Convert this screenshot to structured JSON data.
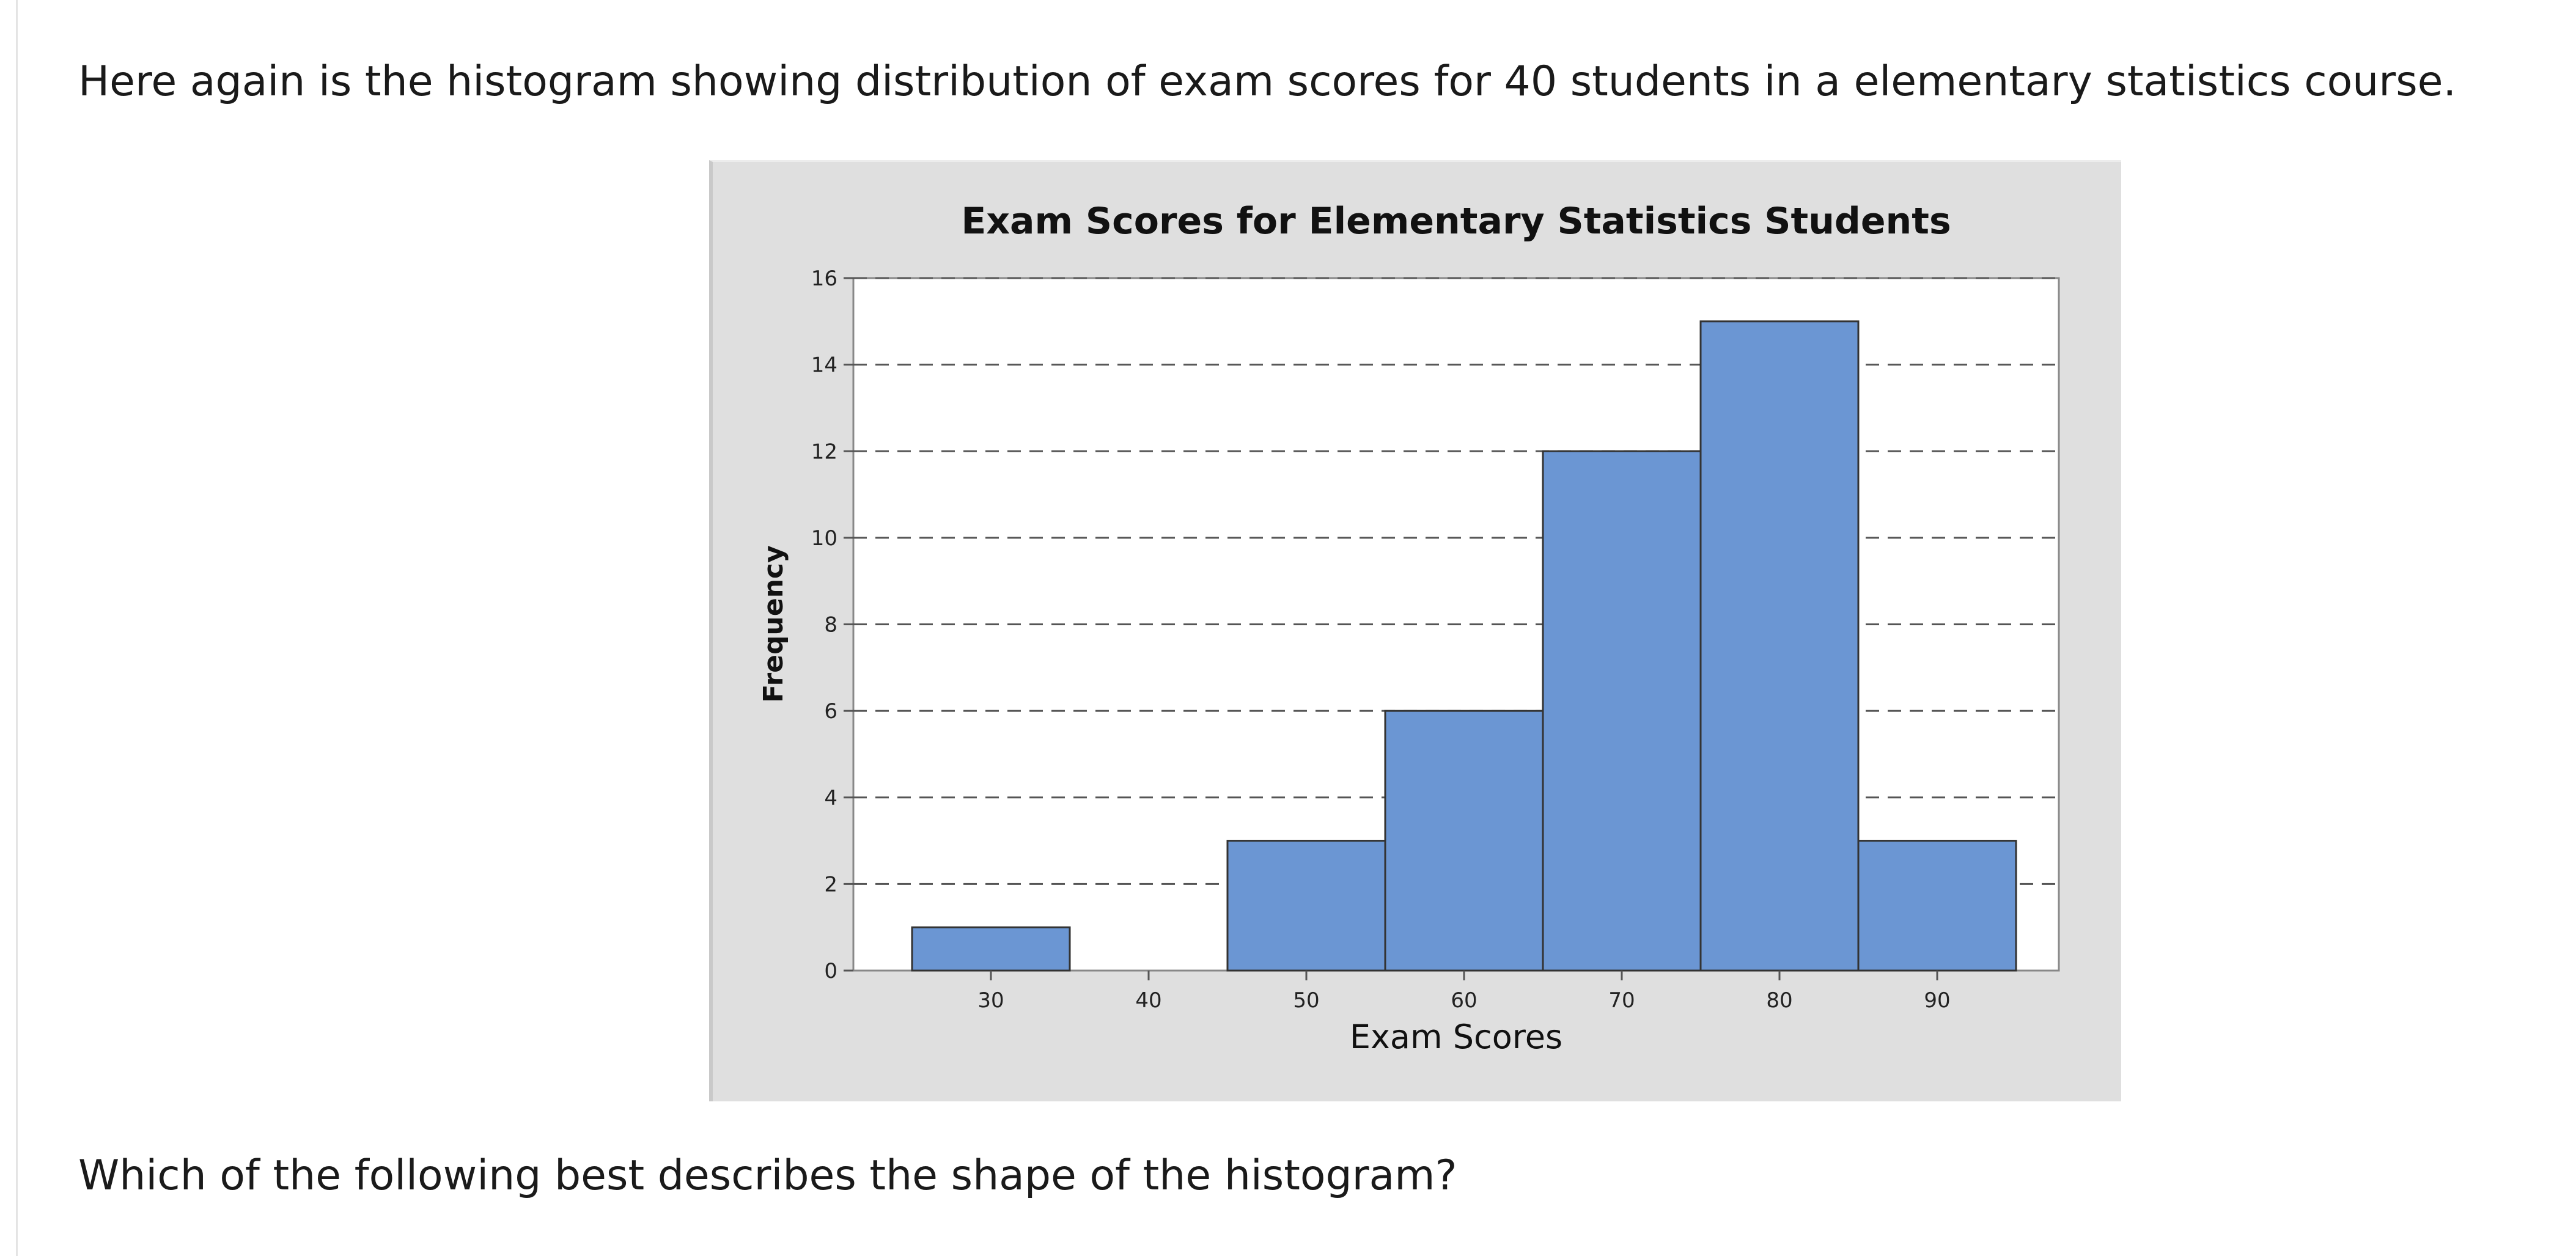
{
  "page": {
    "intro": "Here again is the histogram showing distribution of exam scores for 40 students in a elementary statistics course.",
    "question": "Which of the following best describes the shape of the histogram?"
  },
  "colors": {
    "bar_fill": "#6b96d3",
    "bar_stroke": "#333333",
    "panel_bg": "#dfdfdf",
    "plot_bg": "#ffffff",
    "grid": "#555555"
  },
  "chart_data": {
    "type": "bar",
    "title": "Exam Scores for Elementary Statistics Students",
    "xlabel": "Exam Scores",
    "ylabel": "Frequency",
    "categories": [
      "30",
      "40",
      "50",
      "60",
      "70",
      "80",
      "90"
    ],
    "values": [
      1,
      0,
      3,
      6,
      12,
      15,
      3
    ],
    "ylim": [
      0,
      16
    ],
    "yticks": [
      "0",
      "2",
      "4",
      "6",
      "8",
      "10",
      "12",
      "14",
      "16"
    ],
    "grid": true,
    "grid_style": "dashed"
  }
}
